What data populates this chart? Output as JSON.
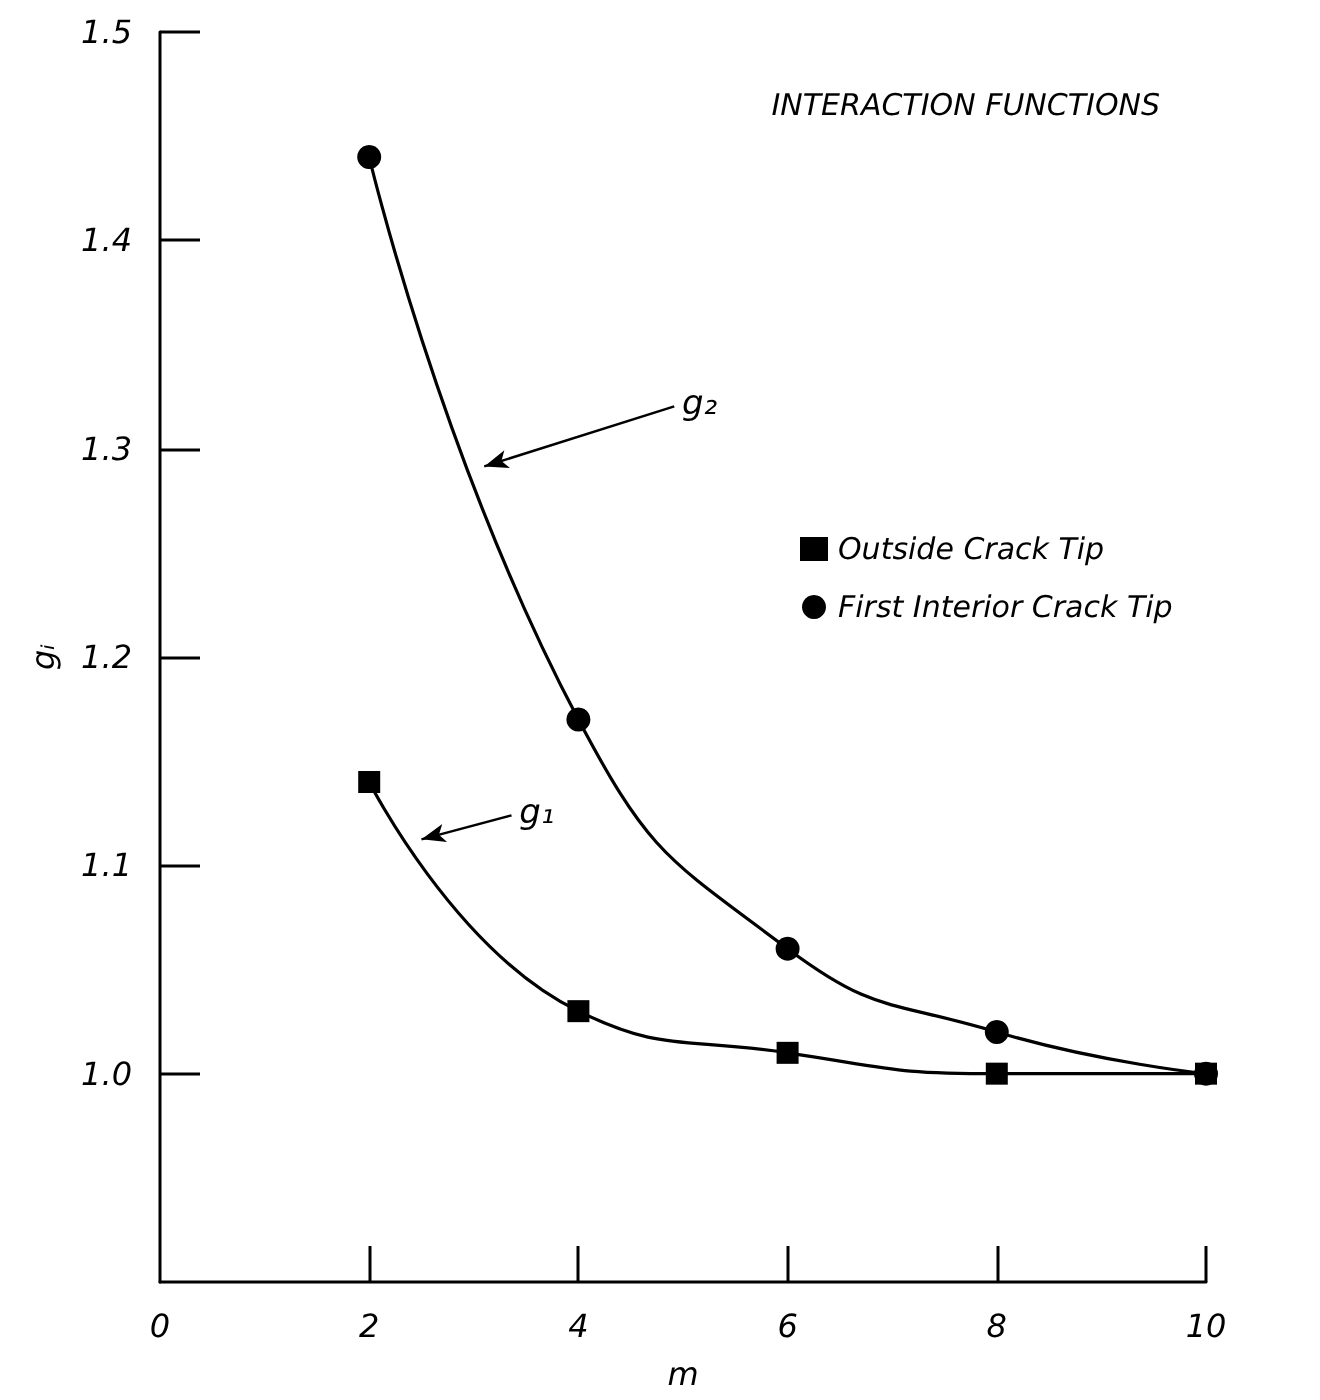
{
  "chart_data": {
    "type": "line",
    "title": "INTERACTION FUNCTIONS",
    "xlabel": "m",
    "ylabel": "gᵢ",
    "x": [
      2,
      4,
      6,
      8,
      10
    ],
    "series": [
      {
        "name": "Outside Crack Tip",
        "color": "#000000",
        "marker": "square",
        "values": [
          1.14,
          1.03,
          1.01,
          1.0,
          1.0
        ]
      },
      {
        "name": "First Interior Crack Tip",
        "color": "#000000",
        "marker": "circle",
        "values": [
          1.44,
          1.17,
          1.06,
          1.02,
          1.0
        ]
      }
    ],
    "annotations": [
      "g₂",
      "g₁"
    ],
    "xlim": [
      0,
      10
    ],
    "xticks": [
      0,
      2,
      4,
      6,
      8,
      10
    ],
    "ylim": [
      0.9,
      1.5
    ],
    "yticks": [
      {
        "value": 1.0,
        "label": "1.0"
      },
      1.1,
      1.2,
      1.3,
      1.4,
      1.5
    ],
    "grid": false,
    "legend": "right",
    "line_style": "solid"
  }
}
